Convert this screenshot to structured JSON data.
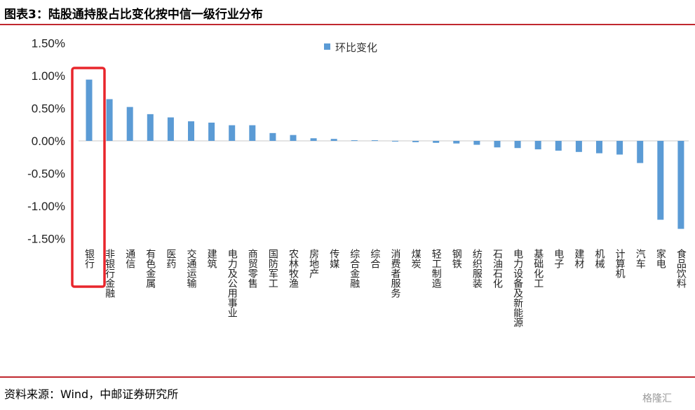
{
  "title": "图表3：陆股通持股占比变化按中信一级行业分布",
  "source": "资料来源：Wind，中邮证券研究所",
  "watermark": "格隆汇",
  "colors": {
    "bar": "#5b9bd5",
    "rule": "#c0282e",
    "highlight": "#e8262c"
  },
  "chart_data": {
    "type": "bar",
    "title": "",
    "xlabel": "",
    "ylabel": "",
    "ylim": [
      -1.5,
      1.5
    ],
    "yticks": [
      "1.50%",
      "1.00%",
      "0.50%",
      "0.00%",
      "-0.50%",
      "-1.00%",
      "-1.50%"
    ],
    "ytick_values": [
      1.5,
      1.0,
      0.5,
      0.0,
      -0.5,
      -1.0,
      -1.5
    ],
    "legend": "top-center",
    "grid": false,
    "highlight_category": "银行",
    "categories": [
      "银行",
      "非银行金融",
      "通信",
      "有色金属",
      "医药",
      "交通运输",
      "建筑",
      "电力及公用事业",
      "商贸零售",
      "国防军工",
      "农林牧渔",
      "房地产",
      "传媒",
      "综合金融",
      "综合",
      "消费者服务",
      "煤炭",
      "轻工制造",
      "钢铁",
      "纺织服装",
      "石油石化",
      "电力设备及新能源",
      "基础化工",
      "电子",
      "建材",
      "机械",
      "计算机",
      "汽车",
      "家电",
      "食品饮料"
    ],
    "series": [
      {
        "name": "环比变化",
        "values": [
          0.94,
          0.64,
          0.52,
          0.41,
          0.36,
          0.3,
          0.28,
          0.24,
          0.24,
          0.12,
          0.09,
          0.04,
          0.03,
          0.01,
          0.01,
          0.0,
          -0.02,
          -0.03,
          -0.04,
          -0.06,
          -0.1,
          -0.11,
          -0.13,
          -0.15,
          -0.17,
          -0.19,
          -0.21,
          -0.34,
          -1.21,
          -1.35
        ]
      }
    ]
  }
}
